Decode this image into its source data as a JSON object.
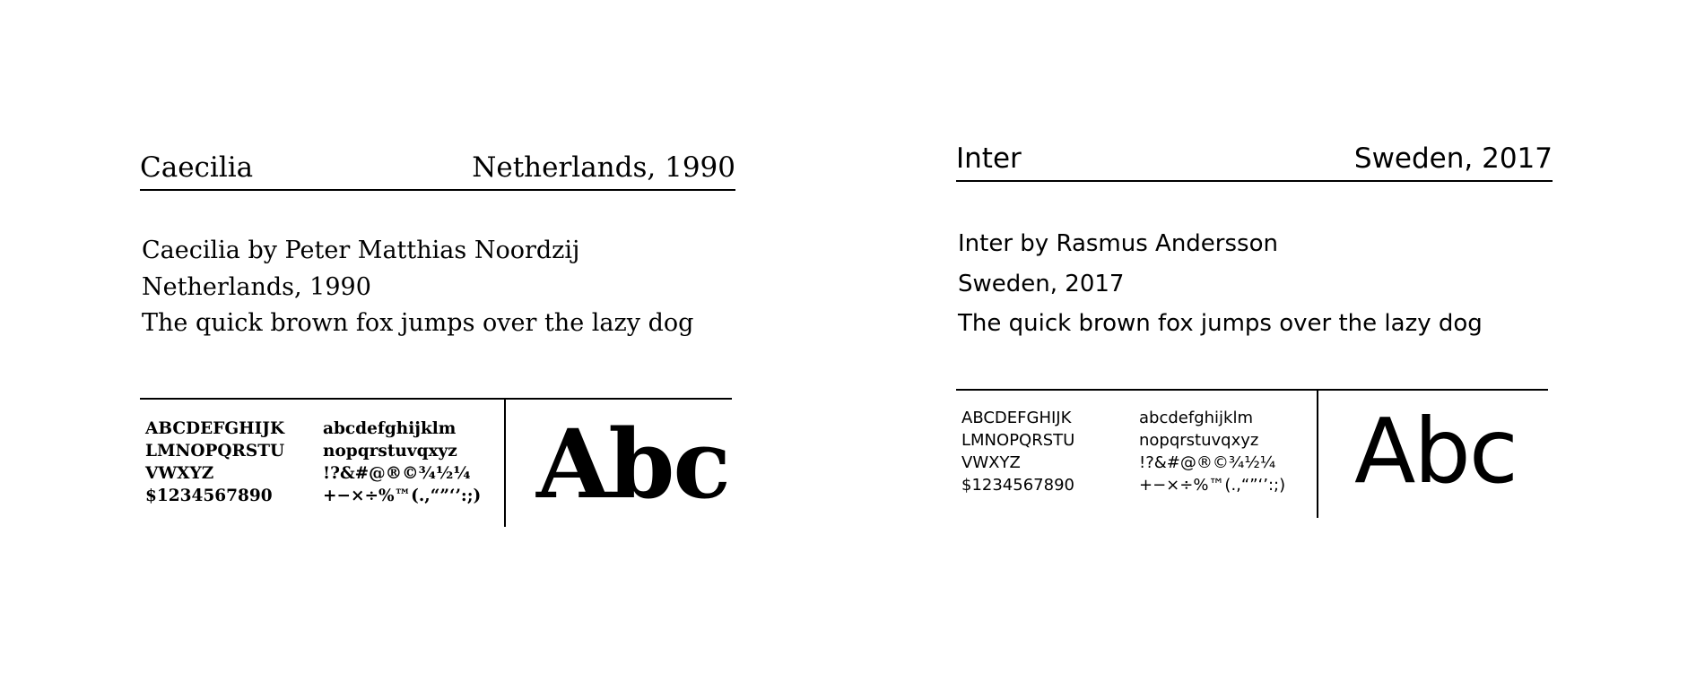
{
  "specimens": [
    {
      "name": "Caecilia",
      "origin": "Netherlands, 1990",
      "lines": [
        "Caecilia by Peter Matthias Noordzij",
        "Netherlands, 1990",
        "The quick brown fox jumps over the lazy dog"
      ],
      "upper": [
        "ABCDEFGHIJK",
        "LMNOPQRSTU",
        "VWXYZ",
        "$1234567890"
      ],
      "lower": [
        "abcdefghijklm",
        "nopqrstuvqxyz",
        "!?&#@®©¾½¼",
        "+−×÷%™(.,“”‘’:;)"
      ],
      "sample": "Abc"
    },
    {
      "name": "Inter",
      "origin": "Sweden, 2017",
      "lines": [
        "Inter by Rasmus Andersson",
        "Sweden, 2017",
        "The quick brown fox jumps over the lazy dog"
      ],
      "upper": [
        "ABCDEFGHIJK",
        "LMNOPQRSTU",
        "VWXYZ",
        "$1234567890"
      ],
      "lower": [
        "abcdefghijklm",
        "nopqrstuvqxyz",
        "!?&#@®©¾½¼",
        "+−×÷%™(.,“”‘’:;)"
      ],
      "sample": "Abc"
    }
  ]
}
